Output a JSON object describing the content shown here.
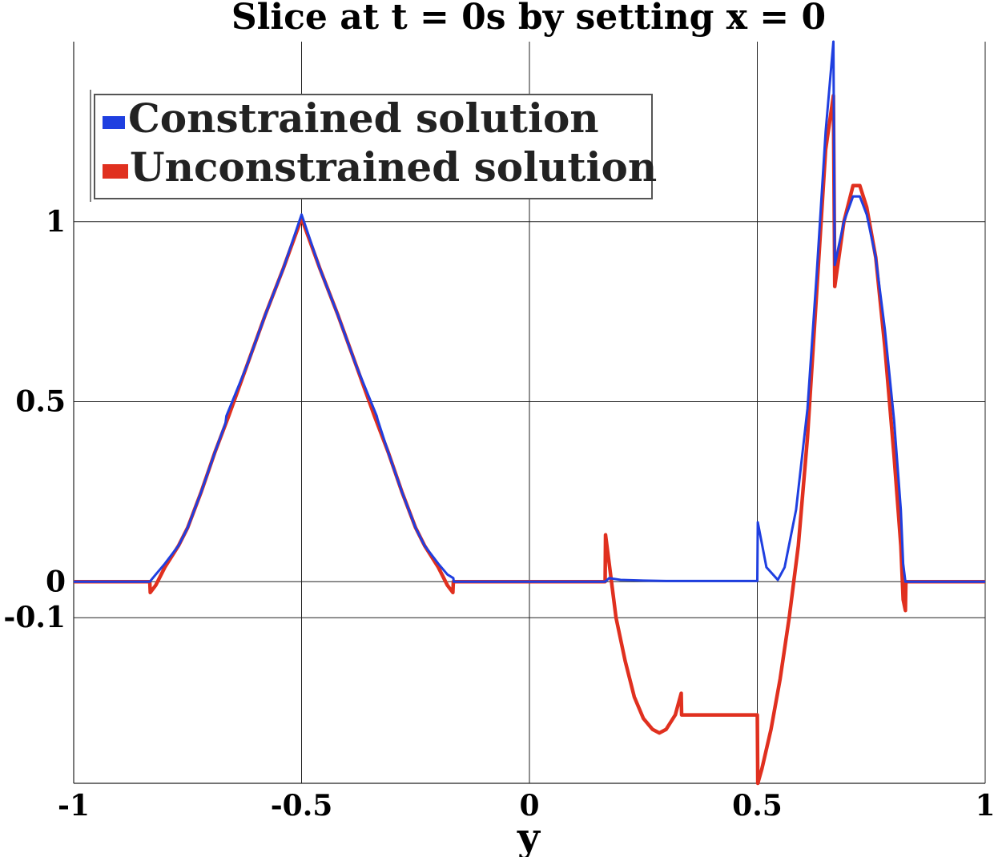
{
  "chart_data": {
    "type": "line",
    "title": "Slice at t = 0s by setting x = 0",
    "xlabel": "y",
    "ylabel": "",
    "xlim": [
      -1,
      1
    ],
    "ylim": [
      -0.56,
      1.5
    ],
    "x_ticks": [
      -1,
      -0.5,
      0,
      0.5,
      1
    ],
    "x_tick_labels": [
      "-1",
      "-0.5",
      "0",
      "0.5",
      "1"
    ],
    "y_ticks": [
      -0.1,
      0,
      0.5,
      1
    ],
    "y_tick_labels": [
      "-0.1",
      "0",
      "0.5",
      "1"
    ],
    "grid": true,
    "legend_position": "top-left",
    "series": [
      {
        "name": "Constrained solution",
        "color": "#1f3fe0",
        "points": [
          [
            -1,
            0
          ],
          [
            -0.833,
            0
          ],
          [
            -0.82,
            0.02
          ],
          [
            -0.8,
            0.05
          ],
          [
            -0.77,
            0.1
          ],
          [
            -0.75,
            0.15
          ],
          [
            -0.72,
            0.25
          ],
          [
            -0.69,
            0.36
          ],
          [
            -0.667,
            0.44
          ],
          [
            -0.665,
            0.46
          ],
          [
            -0.62,
            0.6
          ],
          [
            -0.58,
            0.74
          ],
          [
            -0.54,
            0.87
          ],
          [
            -0.5,
            1.02
          ],
          [
            -0.46,
            0.87
          ],
          [
            -0.42,
            0.74
          ],
          [
            -0.38,
            0.6
          ],
          [
            -0.335,
            0.46
          ],
          [
            -0.333,
            0.45
          ],
          [
            -0.31,
            0.36
          ],
          [
            -0.28,
            0.25
          ],
          [
            -0.25,
            0.15
          ],
          [
            -0.23,
            0.1
          ],
          [
            -0.2,
            0.05
          ],
          [
            -0.18,
            0.02
          ],
          [
            -0.167,
            0.01
          ],
          [
            -0.166,
            0
          ],
          [
            0.166,
            0
          ],
          [
            0.175,
            0.01
          ],
          [
            0.2,
            0.005
          ],
          [
            0.25,
            0.003
          ],
          [
            0.3,
            0.002
          ],
          [
            0.5,
            0.002
          ],
          [
            0.501,
            0.165
          ],
          [
            0.52,
            0.04
          ],
          [
            0.545,
            0.005
          ],
          [
            0.56,
            0.04
          ],
          [
            0.585,
            0.2
          ],
          [
            0.61,
            0.48
          ],
          [
            0.63,
            0.85
          ],
          [
            0.65,
            1.25
          ],
          [
            0.667,
            1.5
          ],
          [
            0.67,
            0.88
          ],
          [
            0.69,
            1.0
          ],
          [
            0.71,
            1.07
          ],
          [
            0.725,
            1.07
          ],
          [
            0.74,
            1.02
          ],
          [
            0.76,
            0.9
          ],
          [
            0.78,
            0.7
          ],
          [
            0.8,
            0.45
          ],
          [
            0.815,
            0.2
          ],
          [
            0.82,
            0.05
          ],
          [
            0.825,
            0
          ],
          [
            1,
            0
          ]
        ]
      },
      {
        "name": "Unconstrained solution",
        "color": "#e0301f",
        "points": [
          [
            -1,
            0
          ],
          [
            -0.833,
            0
          ],
          [
            -0.832,
            -0.03
          ],
          [
            -0.82,
            -0.01
          ],
          [
            -0.8,
            0.04
          ],
          [
            -0.77,
            0.1
          ],
          [
            -0.75,
            0.15
          ],
          [
            -0.72,
            0.25
          ],
          [
            -0.69,
            0.36
          ],
          [
            -0.66,
            0.46
          ],
          [
            -0.62,
            0.6
          ],
          [
            -0.58,
            0.74
          ],
          [
            -0.54,
            0.87
          ],
          [
            -0.5,
            1.01
          ],
          [
            -0.46,
            0.87
          ],
          [
            -0.42,
            0.74
          ],
          [
            -0.38,
            0.6
          ],
          [
            -0.34,
            0.46
          ],
          [
            -0.31,
            0.36
          ],
          [
            -0.28,
            0.25
          ],
          [
            -0.25,
            0.15
          ],
          [
            -0.23,
            0.1
          ],
          [
            -0.2,
            0.04
          ],
          [
            -0.18,
            -0.01
          ],
          [
            -0.168,
            -0.03
          ],
          [
            -0.167,
            0
          ],
          [
            0.166,
            0
          ],
          [
            0.167,
            0.13
          ],
          [
            0.175,
            0.05
          ],
          [
            0.19,
            -0.1
          ],
          [
            0.21,
            -0.22
          ],
          [
            0.23,
            -0.32
          ],
          [
            0.25,
            -0.38
          ],
          [
            0.27,
            -0.41
          ],
          [
            0.285,
            -0.42
          ],
          [
            0.3,
            -0.41
          ],
          [
            0.32,
            -0.37
          ],
          [
            0.333,
            -0.31
          ],
          [
            0.334,
            -0.37
          ],
          [
            0.5,
            -0.37
          ],
          [
            0.501,
            -0.56
          ],
          [
            0.51,
            -0.52
          ],
          [
            0.53,
            -0.41
          ],
          [
            0.55,
            -0.27
          ],
          [
            0.57,
            -0.1
          ],
          [
            0.59,
            0.1
          ],
          [
            0.61,
            0.4
          ],
          [
            0.63,
            0.8
          ],
          [
            0.65,
            1.2
          ],
          [
            0.667,
            1.35
          ],
          [
            0.67,
            0.82
          ],
          [
            0.69,
            1.0
          ],
          [
            0.71,
            1.1
          ],
          [
            0.725,
            1.1
          ],
          [
            0.74,
            1.04
          ],
          [
            0.76,
            0.9
          ],
          [
            0.78,
            0.65
          ],
          [
            0.8,
            0.35
          ],
          [
            0.815,
            0.1
          ],
          [
            0.82,
            -0.05
          ],
          [
            0.825,
            -0.08
          ],
          [
            0.826,
            0
          ],
          [
            1,
            0
          ]
        ]
      }
    ]
  }
}
